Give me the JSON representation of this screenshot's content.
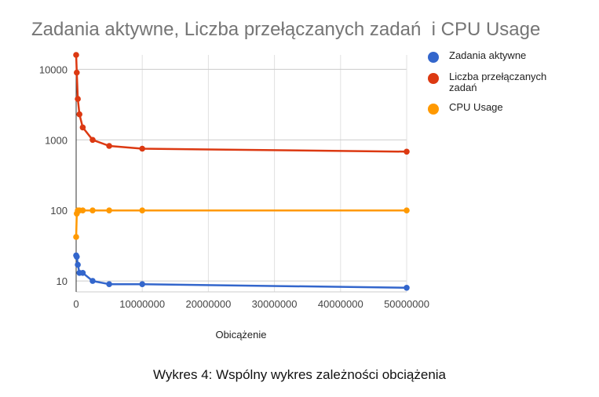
{
  "chart_data": {
    "type": "line",
    "title": "Zadania aktywne, Liczba przełączanych zadań  i CPU Usage",
    "xlabel": "Obicążenie",
    "ylabel": "",
    "y_scale": "log",
    "xlim": [
      0,
      50000000
    ],
    "ylim": [
      7,
      16000
    ],
    "x_ticks": [
      "0",
      "10000000",
      "20000000",
      "30000000",
      "40000000",
      "50000000"
    ],
    "y_ticks": [
      "10",
      "100",
      "1000",
      "10000"
    ],
    "grid": true,
    "legend_position": "right",
    "series": [
      {
        "name": "Zadania aktywne",
        "color": "#3366cc",
        "points": [
          [
            0,
            23
          ],
          [
            100000,
            22
          ],
          [
            250000,
            17
          ],
          [
            500000,
            13
          ],
          [
            1000000,
            13
          ],
          [
            2500000,
            10
          ],
          [
            5000000,
            9
          ],
          [
            10000000,
            9
          ],
          [
            50000000,
            8
          ]
        ]
      },
      {
        "name": "Liczba przełączanych zadań",
        "color": "#dc3912",
        "points": [
          [
            0,
            16000
          ],
          [
            100000,
            9000
          ],
          [
            250000,
            3800
          ],
          [
            500000,
            2300
          ],
          [
            1000000,
            1500
          ],
          [
            2500000,
            1000
          ],
          [
            5000000,
            820
          ],
          [
            10000000,
            750
          ],
          [
            50000000,
            680
          ]
        ]
      },
      {
        "name": "CPU Usage",
        "color": "#ff9900",
        "points": [
          [
            0,
            42
          ],
          [
            100000,
            90
          ],
          [
            250000,
            100
          ],
          [
            500000,
            100
          ],
          [
            1000000,
            100
          ],
          [
            2500000,
            100
          ],
          [
            5000000,
            100
          ],
          [
            10000000,
            100
          ],
          [
            50000000,
            100
          ]
        ]
      }
    ]
  },
  "caption": "Wykres 4: Wspólny wykres zależności obciążenia"
}
